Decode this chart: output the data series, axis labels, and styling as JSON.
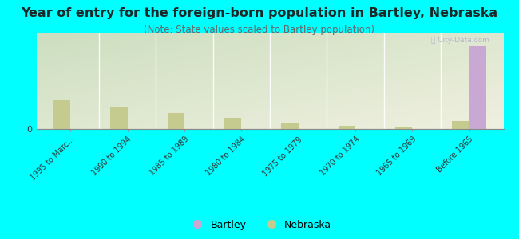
{
  "title": "Year of entry for the foreign-born population in Bartley, Nebraska",
  "subtitle": "(Note: State values scaled to Bartley population)",
  "categories": [
    "1995 to Marc...",
    "1990 to 1994",
    "1985 to 1989",
    "1980 to 1984",
    "1975 to 1979",
    "1970 to 1974",
    "1965 to 1969",
    "Before 1965"
  ],
  "bartley_values": [
    0,
    0,
    0,
    0,
    0,
    0,
    0,
    52
  ],
  "nebraska_values": [
    18,
    14,
    10,
    7,
    4,
    2,
    1,
    5
  ],
  "bartley_color": "#c9a8d4",
  "nebraska_color": "#c5ca8e",
  "bg_color": "#00ffff",
  "plot_bg_left": "#ccdfc0",
  "plot_bg_right": "#f5f5e8",
  "bar_width": 0.3,
  "ylim": [
    0,
    60
  ],
  "title_fontsize": 11.5,
  "subtitle_fontsize": 8.5,
  "title_color": "#1a2a2a"
}
